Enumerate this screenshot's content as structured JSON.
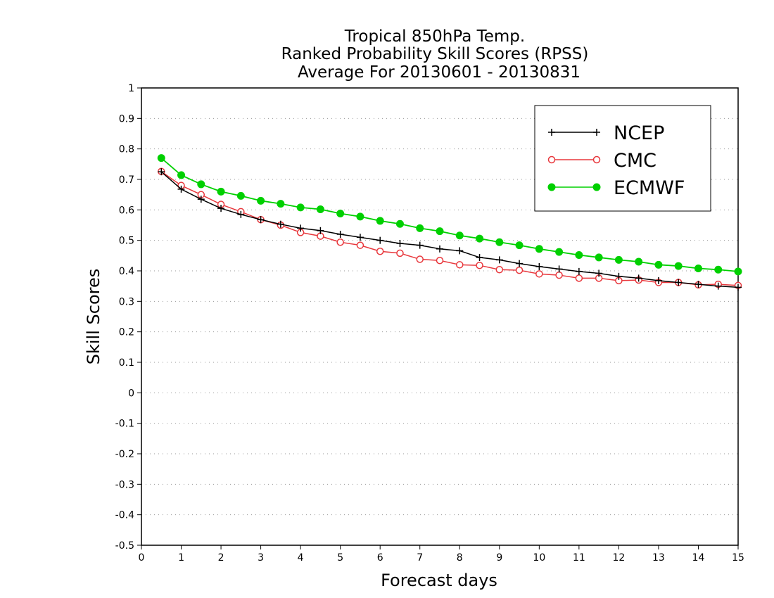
{
  "chart_data": {
    "type": "line",
    "title": [
      "Tropical 850hPa Temp.",
      "Ranked Probability Skill Scores (RPSS)",
      "Average For 20130601 - 20130831"
    ],
    "xlabel": "Forecast days",
    "ylabel": "Skill Scores",
    "xlim": [
      0,
      15
    ],
    "ylim": [
      -0.5,
      1
    ],
    "x_ticks": [
      "0",
      "1",
      "2",
      "3",
      "4",
      "5",
      "6",
      "7",
      "8",
      "9",
      "10",
      "11",
      "12",
      "13",
      "14",
      "15"
    ],
    "y_ticks": [
      "-0.5",
      "-0.4",
      "-0.3",
      "-0.2",
      "-0.1",
      "0",
      "0.1",
      "0.2",
      "0.3",
      "0.4",
      "0.5",
      "0.6",
      "0.7",
      "0.8",
      "0.9",
      "1"
    ],
    "grid": "horizontal dotted",
    "legend_position": "top-right",
    "x": [
      0.5,
      1,
      1.5,
      2,
      2.5,
      3,
      3.5,
      4,
      4.5,
      5,
      5.5,
      6,
      6.5,
      7,
      7.5,
      8,
      8.5,
      9,
      9.5,
      10,
      10.5,
      11,
      11.5,
      12,
      12.5,
      13,
      13.5,
      14,
      14.5,
      15
    ],
    "series": [
      {
        "name": "NCEP",
        "color": "#000000",
        "marker": "plus",
        "values": [
          0.725,
          0.668,
          0.635,
          0.605,
          0.585,
          0.568,
          0.553,
          0.54,
          0.532,
          0.52,
          0.51,
          0.5,
          0.49,
          0.484,
          0.472,
          0.466,
          0.444,
          0.436,
          0.424,
          0.414,
          0.406,
          0.398,
          0.392,
          0.382,
          0.376,
          0.368,
          0.362,
          0.356,
          0.35,
          0.346
        ]
      },
      {
        "name": "CMC",
        "color": "#e8383d",
        "marker": "open-circle",
        "values": [
          0.726,
          0.68,
          0.65,
          0.618,
          0.594,
          0.568,
          0.55,
          0.526,
          0.514,
          0.494,
          0.484,
          0.464,
          0.458,
          0.438,
          0.434,
          0.42,
          0.418,
          0.404,
          0.402,
          0.39,
          0.386,
          0.376,
          0.376,
          0.368,
          0.37,
          0.362,
          0.362,
          0.354,
          0.356,
          0.352
        ]
      },
      {
        "name": "ECMWF",
        "color": "#00d000",
        "marker": "filled-circle",
        "values": [
          0.77,
          0.714,
          0.684,
          0.66,
          0.646,
          0.63,
          0.62,
          0.608,
          0.602,
          0.588,
          0.578,
          0.564,
          0.554,
          0.54,
          0.53,
          0.516,
          0.506,
          0.494,
          0.484,
          0.472,
          0.462,
          0.452,
          0.444,
          0.436,
          0.43,
          0.42,
          0.416,
          0.408,
          0.404,
          0.398
        ]
      }
    ]
  }
}
